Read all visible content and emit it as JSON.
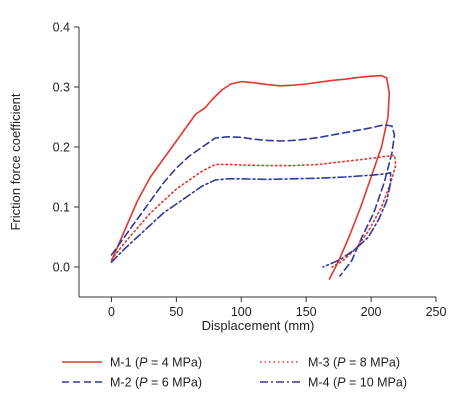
{
  "chart_data": {
    "type": "line",
    "title": "",
    "xlabel": "Displacement (mm)",
    "ylabel": "Friction force coefficient",
    "xlim": [
      -25,
      250
    ],
    "ylim": [
      -0.05,
      0.4
    ],
    "x_ticks": [
      0,
      50,
      100,
      150,
      200,
      250
    ],
    "y_ticks": [
      0.0,
      0.1,
      0.2,
      0.3,
      0.4
    ],
    "x_tick_labels": [
      "0",
      "50",
      "100",
      "150",
      "200",
      "250"
    ],
    "y_tick_labels": [
      "0.0",
      "0.1",
      "0.2",
      "0.3",
      "0.4"
    ],
    "grid": false,
    "legend_position": "bottom",
    "series": [
      {
        "name": "M-1 (P = 4 MPa)",
        "legend": {
          "prefix": "M-1 (",
          "italic": "P",
          "suffix": " = 4 MPa)"
        },
        "color": "#e0382e",
        "dash": "solid",
        "points": [
          [
            0,
            0.01
          ],
          [
            10,
            0.06
          ],
          [
            20,
            0.11
          ],
          [
            30,
            0.15
          ],
          [
            40,
            0.18
          ],
          [
            50,
            0.21
          ],
          [
            60,
            0.24
          ],
          [
            65,
            0.255
          ],
          [
            72,
            0.265
          ],
          [
            78,
            0.28
          ],
          [
            85,
            0.295
          ],
          [
            92,
            0.305
          ],
          [
            100,
            0.309
          ],
          [
            110,
            0.307
          ],
          [
            120,
            0.304
          ],
          [
            130,
            0.302
          ],
          [
            140,
            0.303
          ],
          [
            150,
            0.305
          ],
          [
            160,
            0.308
          ],
          [
            170,
            0.311
          ],
          [
            180,
            0.313
          ],
          [
            190,
            0.316
          ],
          [
            200,
            0.318
          ],
          [
            208,
            0.319
          ],
          [
            212,
            0.315
          ],
          [
            214,
            0.29
          ],
          [
            213,
            0.25
          ],
          [
            208,
            0.2
          ],
          [
            200,
            0.15
          ],
          [
            192,
            0.1
          ],
          [
            183,
            0.05
          ],
          [
            175,
            0.01
          ],
          [
            168,
            -0.02
          ]
        ]
      },
      {
        "name": "M-2 (P = 6 MPa)",
        "legend": {
          "prefix": "M-2 (",
          "italic": "P",
          "suffix": " = 6 MPa)"
        },
        "color": "#2e3a9e",
        "dash": "dashed",
        "points": [
          [
            0,
            0.02
          ],
          [
            10,
            0.05
          ],
          [
            20,
            0.08
          ],
          [
            30,
            0.11
          ],
          [
            40,
            0.14
          ],
          [
            50,
            0.165
          ],
          [
            60,
            0.185
          ],
          [
            70,
            0.2
          ],
          [
            80,
            0.215
          ],
          [
            90,
            0.217
          ],
          [
            100,
            0.216
          ],
          [
            110,
            0.213
          ],
          [
            120,
            0.211
          ],
          [
            130,
            0.21
          ],
          [
            140,
            0.211
          ],
          [
            150,
            0.213
          ],
          [
            160,
            0.216
          ],
          [
            170,
            0.22
          ],
          [
            180,
            0.224
          ],
          [
            190,
            0.228
          ],
          [
            200,
            0.232
          ],
          [
            210,
            0.237
          ],
          [
            216,
            0.235
          ],
          [
            218,
            0.22
          ],
          [
            216,
            0.19
          ],
          [
            210,
            0.14
          ],
          [
            202,
            0.09
          ],
          [
            193,
            0.05
          ],
          [
            185,
            0.01
          ],
          [
            176,
            -0.015
          ]
        ]
      },
      {
        "name": "M-3 (P = 8 MPa)",
        "legend": {
          "prefix": "M-3 (",
          "italic": "P",
          "suffix": " = 8 MPa)"
        },
        "color": "#e0382e",
        "dash": "dotted",
        "points": [
          [
            0,
            0.012
          ],
          [
            10,
            0.04
          ],
          [
            20,
            0.065
          ],
          [
            30,
            0.09
          ],
          [
            40,
            0.11
          ],
          [
            50,
            0.13
          ],
          [
            60,
            0.145
          ],
          [
            70,
            0.16
          ],
          [
            80,
            0.171
          ],
          [
            90,
            0.171
          ],
          [
            100,
            0.17
          ],
          [
            120,
            0.169
          ],
          [
            140,
            0.169
          ],
          [
            160,
            0.171
          ],
          [
            180,
            0.176
          ],
          [
            200,
            0.181
          ],
          [
            210,
            0.184
          ],
          [
            218,
            0.186
          ],
          [
            219,
            0.17
          ],
          [
            215,
            0.14
          ],
          [
            208,
            0.1
          ],
          [
            198,
            0.06
          ],
          [
            188,
            0.03
          ],
          [
            178,
            0.01
          ],
          [
            170,
            0.0
          ]
        ]
      },
      {
        "name": "M-4 (P = 10 MPa)",
        "legend": {
          "prefix": "M-4 (",
          "italic": "P",
          "suffix": " = 10 MPa)"
        },
        "color": "#2e3a9e",
        "dash": "dashdot",
        "points": [
          [
            0,
            0.008
          ],
          [
            10,
            0.03
          ],
          [
            20,
            0.05
          ],
          [
            30,
            0.07
          ],
          [
            40,
            0.09
          ],
          [
            50,
            0.105
          ],
          [
            60,
            0.12
          ],
          [
            70,
            0.135
          ],
          [
            80,
            0.145
          ],
          [
            90,
            0.147
          ],
          [
            100,
            0.147
          ],
          [
            120,
            0.146
          ],
          [
            140,
            0.147
          ],
          [
            160,
            0.148
          ],
          [
            180,
            0.15
          ],
          [
            200,
            0.153
          ],
          [
            210,
            0.155
          ],
          [
            215,
            0.157
          ],
          [
            215,
            0.14
          ],
          [
            212,
            0.11
          ],
          [
            206,
            0.08
          ],
          [
            198,
            0.05
          ],
          [
            188,
            0.03
          ],
          [
            176,
            0.012
          ],
          [
            163,
            0.0
          ]
        ]
      }
    ]
  }
}
